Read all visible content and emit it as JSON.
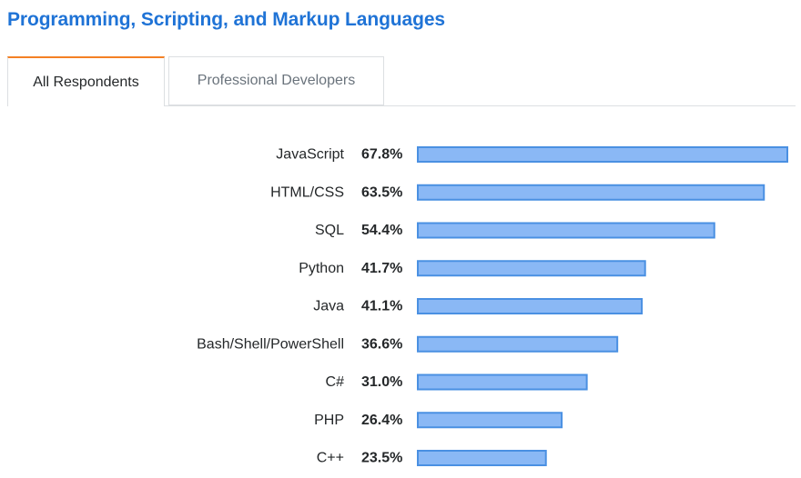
{
  "page": {
    "title": "Programming, Scripting, and Markup Languages"
  },
  "tabs": [
    {
      "label": "All Respondents",
      "active": true
    },
    {
      "label": "Professional Developers",
      "active": false
    }
  ],
  "colors": {
    "title": "#1f73d6",
    "bar_fill": "#8ab8f5",
    "bar_stroke": "#4a90e2",
    "active_tab_accent": "#f48024"
  },
  "chart_data": {
    "type": "bar",
    "orientation": "horizontal",
    "categories": [
      "JavaScript",
      "HTML/CSS",
      "SQL",
      "Python",
      "Java",
      "Bash/Shell/PowerShell",
      "C#",
      "PHP",
      "C++"
    ],
    "values": [
      67.8,
      63.5,
      54.4,
      41.7,
      41.1,
      36.6,
      31.0,
      26.4,
      23.5
    ],
    "value_labels": [
      "67.8%",
      "63.5%",
      "54.4%",
      "41.7%",
      "41.1%",
      "36.6%",
      "31.0%",
      "26.4%",
      "23.5%"
    ],
    "xlim": [
      0,
      67.8
    ],
    "grid": false,
    "legend": "none"
  }
}
